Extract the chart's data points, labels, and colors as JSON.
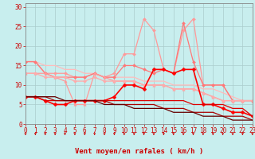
{
  "x": [
    0,
    1,
    2,
    3,
    4,
    5,
    6,
    7,
    8,
    9,
    10,
    11,
    12,
    13,
    14,
    15,
    16,
    17,
    18,
    19,
    20,
    21,
    22,
    23
  ],
  "lines": [
    {
      "color": "#FFBBBB",
      "linewidth": 0.9,
      "marker": null,
      "y": [
        16,
        16,
        15,
        15,
        14,
        14,
        13,
        13,
        12,
        12,
        12,
        12,
        11,
        11,
        11,
        10,
        10,
        10,
        9,
        9,
        8,
        7,
        6,
        6
      ]
    },
    {
      "color": "#FF9999",
      "linewidth": 0.9,
      "marker": "D",
      "markersize": 2.0,
      "y": [
        16,
        16,
        13,
        13,
        13,
        12,
        12,
        13,
        12,
        13,
        18,
        18,
        27,
        24,
        14,
        13,
        24,
        27,
        10,
        10,
        10,
        6,
        6,
        6
      ]
    },
    {
      "color": "#FF7777",
      "linewidth": 0.9,
      "marker": "D",
      "markersize": 2.0,
      "y": [
        16,
        16,
        13,
        12,
        12,
        12,
        12,
        13,
        12,
        12,
        15,
        15,
        14,
        13,
        14,
        13,
        26,
        16,
        10,
        10,
        10,
        6,
        6,
        6
      ]
    },
    {
      "color": "#FF9999",
      "linewidth": 0.9,
      "marker": "^",
      "markersize": 2.5,
      "y": [
        13,
        13,
        13,
        12,
        11,
        5,
        5,
        13,
        12,
        11,
        11,
        11,
        10,
        10,
        10,
        9,
        9,
        9,
        8,
        7,
        6,
        6,
        6,
        6
      ]
    },
    {
      "color": "#FFAAAA",
      "linewidth": 0.9,
      "marker": "D",
      "markersize": 2.0,
      "y": [
        13,
        13,
        12,
        12,
        12,
        11,
        11,
        12,
        11,
        11,
        11,
        11,
        10,
        10,
        10,
        9,
        9,
        9,
        8,
        7,
        6,
        6,
        6,
        6
      ]
    },
    {
      "color": "#FF0000",
      "linewidth": 1.2,
      "marker": "D",
      "markersize": 2.5,
      "y": [
        7,
        7,
        6,
        5,
        5,
        6,
        6,
        6,
        6,
        7,
        10,
        10,
        9,
        14,
        14,
        13,
        14,
        14,
        5,
        5,
        4,
        3,
        3,
        2
      ]
    },
    {
      "color": "#DD0000",
      "linewidth": 0.9,
      "marker": null,
      "y": [
        7,
        7,
        6,
        6,
        6,
        6,
        6,
        6,
        6,
        6,
        6,
        6,
        6,
        6,
        6,
        6,
        6,
        5,
        5,
        5,
        5,
        4,
        4,
        2
      ]
    },
    {
      "color": "#AA0000",
      "linewidth": 0.9,
      "marker": null,
      "y": [
        7,
        7,
        7,
        6,
        6,
        6,
        6,
        6,
        6,
        5,
        5,
        5,
        5,
        5,
        4,
        4,
        4,
        3,
        3,
        3,
        2,
        2,
        2,
        1
      ]
    },
    {
      "color": "#660000",
      "linewidth": 0.9,
      "marker": null,
      "y": [
        7,
        7,
        7,
        7,
        6,
        6,
        6,
        6,
        5,
        5,
        5,
        4,
        4,
        4,
        4,
        3,
        3,
        3,
        2,
        2,
        2,
        1,
        1,
        1
      ]
    }
  ],
  "xlim": [
    0,
    23
  ],
  "ylim": [
    0,
    31
  ],
  "yticks": [
    0,
    5,
    10,
    15,
    20,
    25,
    30
  ],
  "xticks": [
    0,
    1,
    2,
    3,
    4,
    5,
    6,
    7,
    8,
    9,
    10,
    11,
    12,
    13,
    14,
    15,
    16,
    17,
    18,
    19,
    20,
    21,
    22,
    23
  ],
  "xlabel": "Vent moyen/en rafales ( km/h )",
  "background_color": "#C8EEEE",
  "grid_color": "#AACCCC",
  "text_color": "#CC0000",
  "label_fontsize": 6.5,
  "tick_fontsize": 5.5
}
